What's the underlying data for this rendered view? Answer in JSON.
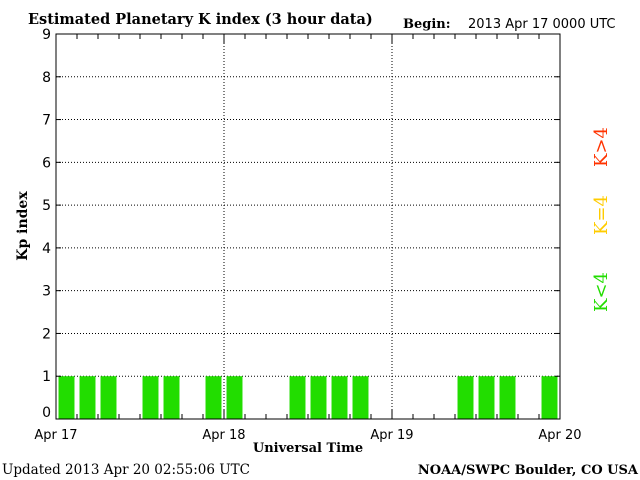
{
  "header": {
    "title": "Estimated Planetary K index (3 hour data)",
    "begin_label": "Begin:",
    "begin_value": "2013 Apr 17 0000 UTC"
  },
  "footer": {
    "updated": "Updated 2013 Apr 20 02:55:06 UTC",
    "source": "NOAA/SWPC Boulder, CO USA"
  },
  "legend": {
    "items": [
      {
        "label": "K>4",
        "color": "#ff3300"
      },
      {
        "label": "K=4",
        "color": "#ffcc00"
      },
      {
        "label": "K<4",
        "color": "#22dd00"
      }
    ]
  },
  "chart_data": {
    "type": "bar",
    "title": "Estimated Planetary K index (3 hour data)",
    "xlabel": "Universal Time",
    "ylabel": "Kp index",
    "ylim": [
      0,
      9
    ],
    "y_ticks": [
      "0",
      "1",
      "2",
      "3",
      "4",
      "5",
      "6",
      "7",
      "8",
      "9"
    ],
    "x_ticks": [
      "Apr 17",
      "Apr 18",
      "Apr 19",
      "Apr 20"
    ],
    "grid": true,
    "interval_hours": 3,
    "bar_color": "#22dd00",
    "categories": [
      "Apr 17 00-03",
      "Apr 17 03-06",
      "Apr 17 06-09",
      "Apr 17 09-12",
      "Apr 17 12-15",
      "Apr 17 15-18",
      "Apr 17 18-21",
      "Apr 17 21-24",
      "Apr 18 00-03",
      "Apr 18 03-06",
      "Apr 18 06-09",
      "Apr 18 09-12",
      "Apr 18 12-15",
      "Apr 18 15-18",
      "Apr 18 18-21",
      "Apr 18 21-24",
      "Apr 19 00-03",
      "Apr 19 03-06",
      "Apr 19 06-09",
      "Apr 19 09-12",
      "Apr 19 12-15",
      "Apr 19 15-18",
      "Apr 19 18-21",
      "Apr 19 21-24"
    ],
    "values": [
      1,
      1,
      1,
      0,
      1,
      1,
      0,
      1,
      1,
      0,
      0,
      1,
      1,
      1,
      1,
      0,
      0,
      0,
      0,
      1,
      1,
      1,
      0,
      1
    ]
  }
}
